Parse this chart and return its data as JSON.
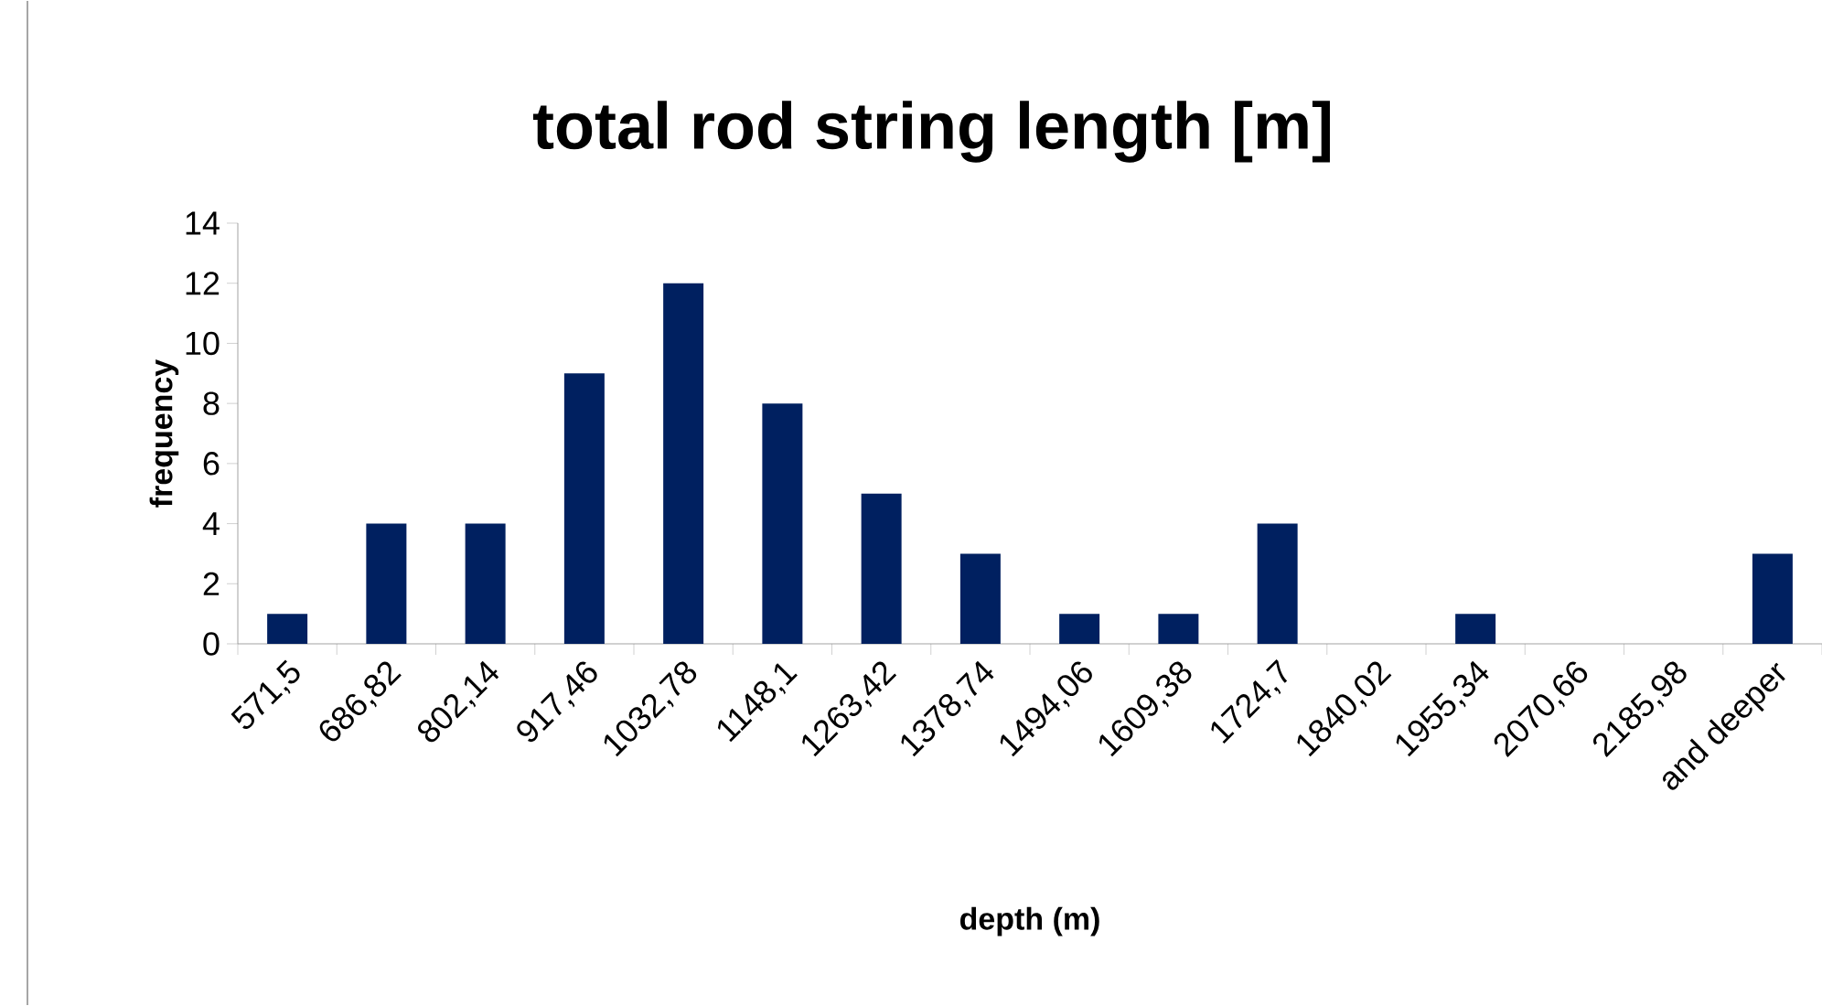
{
  "chart_data": {
    "type": "bar",
    "title": "total rod string length [m]",
    "xlabel": "depth (m)",
    "ylabel": "frequency",
    "categories": [
      "571,5",
      "686,82",
      "802,14",
      "917,46",
      "1032,78",
      "1148,1",
      "1263,42",
      "1378,74",
      "1494,06",
      "1609,38",
      "1724,7",
      "1840,02",
      "1955,34",
      "2070,66",
      "2185,98",
      "and deeper"
    ],
    "values": [
      1,
      4,
      4,
      9,
      12,
      8,
      5,
      3,
      1,
      1,
      4,
      0,
      1,
      0,
      0,
      3
    ],
    "color": "#002060",
    "ylim": [
      0,
      14
    ],
    "yticks": [
      0,
      2,
      4,
      6,
      8,
      10,
      12,
      14
    ],
    "grid": false
  }
}
